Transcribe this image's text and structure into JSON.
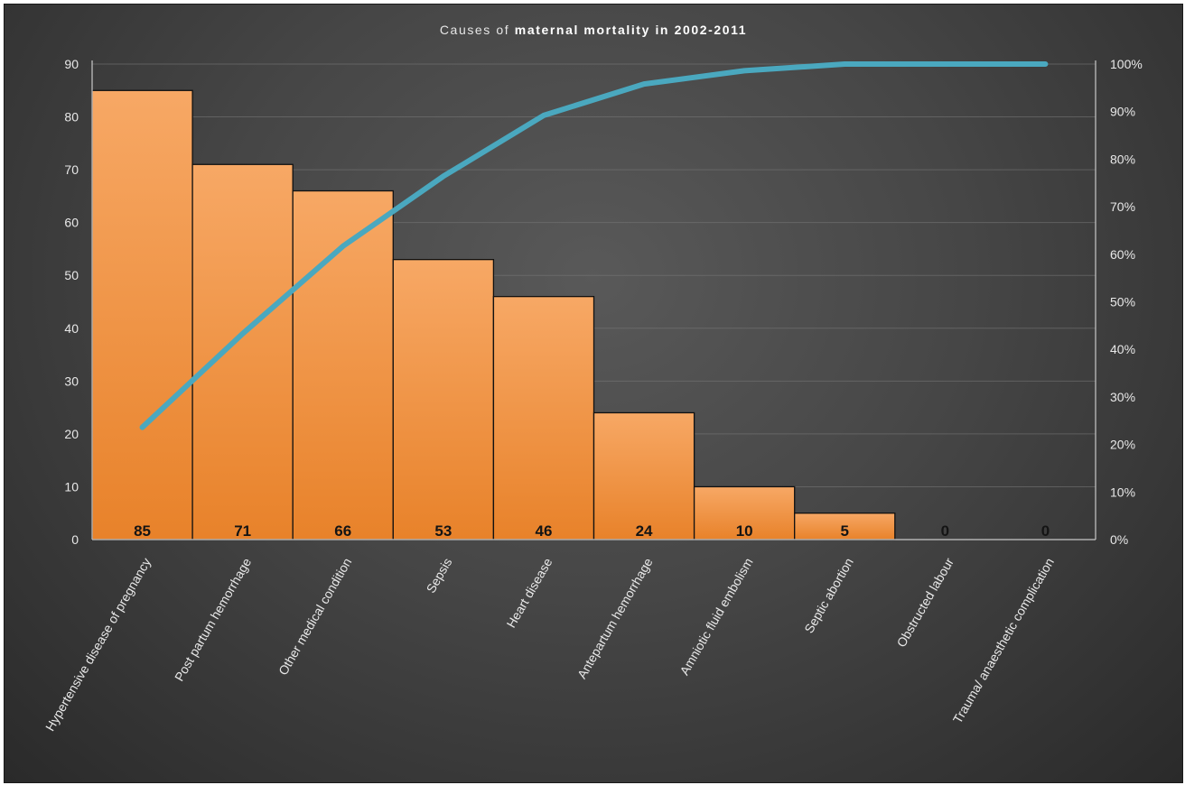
{
  "chart_data": {
    "type": "bar",
    "title_prefix": "Causes of ",
    "title_bold": "maternal mortality in 2002-2011",
    "categories": [
      "Hypertensive disease of pregnancy",
      "Post partum hemorrhage",
      "Other medical condition",
      "Sepsis",
      "Heart disease",
      "Antepartum hemorrhage",
      "Amniotic fluid embolism",
      "Septic abortion",
      "Obstructed labour",
      "Trauma/ anaesthetic complication"
    ],
    "series": [
      {
        "values": [
          85,
          71,
          66,
          53,
          46,
          24,
          10,
          5,
          0,
          0
        ]
      }
    ],
    "cumulative_line": {
      "values": [
        23.6,
        43.3,
        61.7,
        76.4,
        89.2,
        95.8,
        98.6,
        100,
        100,
        100
      ]
    },
    "ylim": [
      0,
      90
    ],
    "yticks": [
      "0",
      "10",
      "20",
      "30",
      "40",
      "50",
      "60",
      "70",
      "80",
      "90"
    ],
    "y2lim": [
      0,
      100
    ],
    "y2ticks": [
      "0%",
      "10%",
      "20%",
      "30%",
      "40%",
      "50%",
      "60%",
      "70%",
      "80%",
      "90%",
      "100%"
    ],
    "grid": true,
    "colors": {
      "bar_top": "#f7a865",
      "bar_bottom": "#e8822a",
      "bar_edge": "#111111",
      "line": "#4aa8bf"
    }
  }
}
